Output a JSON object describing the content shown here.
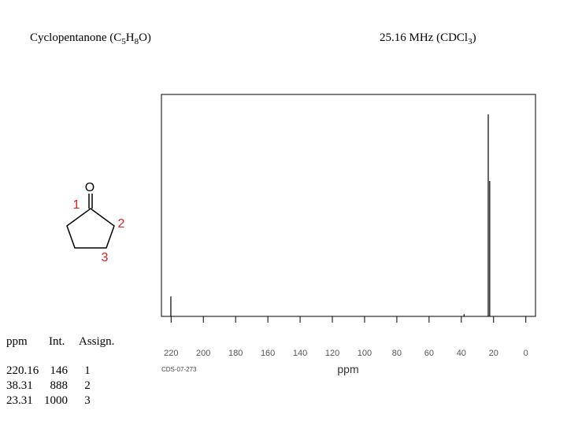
{
  "header": {
    "left": [
      "Cyclopentanone (C",
      "5",
      "H",
      "8",
      "O)"
    ],
    "right": [
      "25.16 MHz (CDCl",
      "3",
      ")"
    ]
  },
  "molecule": {
    "atom": "O",
    "labels": [
      "1",
      "2",
      "3"
    ]
  },
  "table": {
    "header": [
      "ppm",
      "Int.",
      "Assign."
    ],
    "rows": [
      [
        "220.16",
        "146",
        "1"
      ],
      [
        "38.31",
        "888",
        "2"
      ],
      [
        "23.31",
        "1000",
        "3"
      ]
    ]
  },
  "chart_data": {
    "type": "spectrum",
    "code": "CDS-07-273",
    "xlabel": "ppm",
    "x": [
      220.16,
      38.31,
      23.31,
      22.4
    ],
    "values": [
      9,
      1,
      91,
      61
    ],
    "color": "#000000",
    "xlim": [
      226,
      -6
    ],
    "ylim": [
      0,
      100
    ],
    "xticks": [
      220,
      200,
      180,
      160,
      140,
      120,
      100,
      80,
      60,
      40,
      20,
      0
    ]
  }
}
